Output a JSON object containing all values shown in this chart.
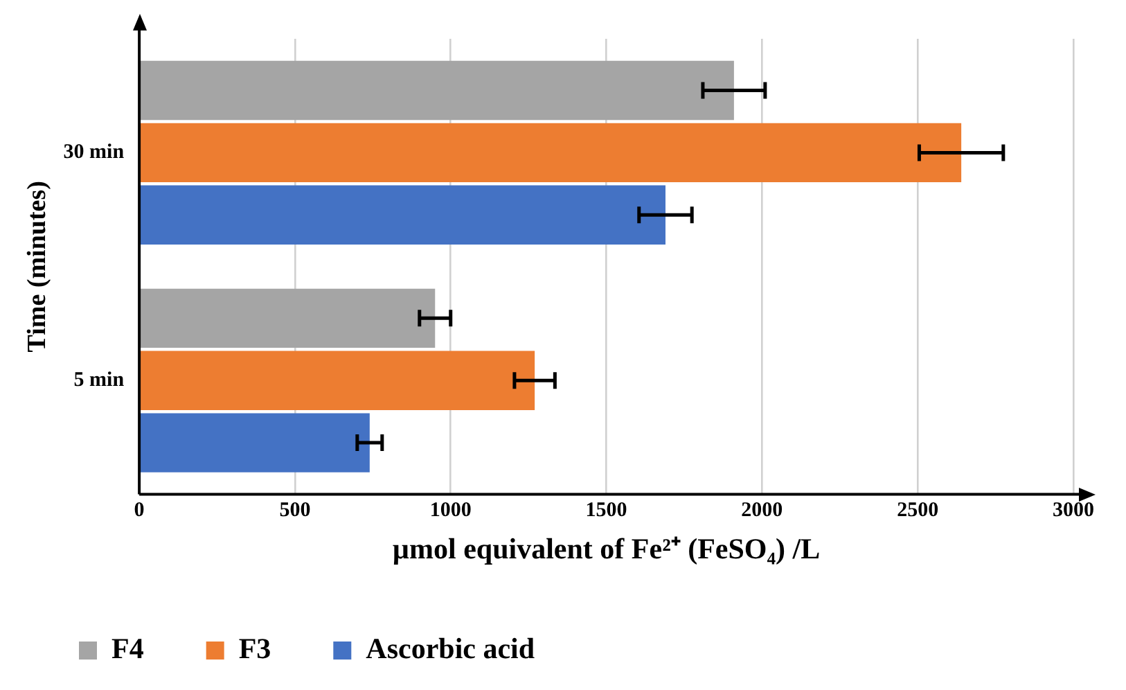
{
  "chart_data": {
    "type": "bar",
    "orientation": "horizontal",
    "xlabel": "µmol equivalent of Fe²⁺ (FeSO₄) /L",
    "ylabel": "Time (minutes)",
    "categories": [
      "30 min",
      "5 min"
    ],
    "series": [
      {
        "name": "F4",
        "color": "#a5a5a5",
        "values": [
          1910,
          950
        ],
        "errors": [
          100,
          50
        ]
      },
      {
        "name": "F3",
        "color": "#ed7d31",
        "values": [
          2640,
          1270
        ],
        "errors": [
          135,
          65
        ]
      },
      {
        "name": "Ascorbic acid",
        "color": "#4472c4",
        "values": [
          1690,
          740
        ],
        "errors": [
          85,
          40
        ]
      }
    ],
    "xlim": [
      0,
      3000
    ],
    "xticks": [
      0,
      500,
      1000,
      1500,
      2000,
      2500,
      3000
    ],
    "grid": "x",
    "legend": "bottom"
  }
}
